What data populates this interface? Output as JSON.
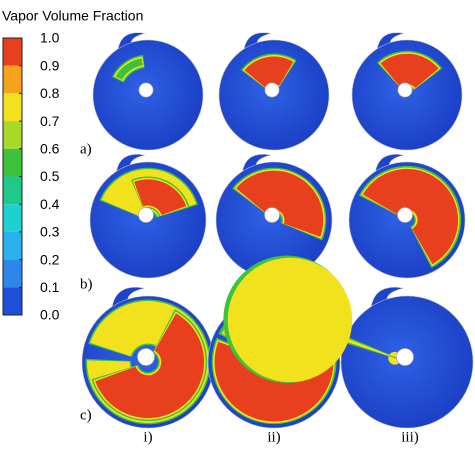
{
  "colorbar": {
    "title": "Vapor Volume Fraction",
    "ticks": [
      {
        "value": 1,
        "label": "1.0"
      },
      {
        "value": 0.9,
        "label": "0.9"
      },
      {
        "value": 0.8,
        "label": "0.8"
      },
      {
        "value": 0.7,
        "label": "0.7"
      },
      {
        "value": 0.6,
        "label": "0.6"
      },
      {
        "value": 0.5,
        "label": "0.5"
      },
      {
        "value": 0.4,
        "label": "0.4"
      },
      {
        "value": 0.3,
        "label": "0.3"
      },
      {
        "value": 0.2,
        "label": "0.2"
      },
      {
        "value": 0.1,
        "label": "0.1"
      },
      {
        "value": 0,
        "label": "0.0"
      }
    ],
    "colors": [
      "#e8401f",
      "#f5a21c",
      "#f2e21e",
      "#a8d828",
      "#3cc23c",
      "#1fc98a",
      "#1fd0d0",
      "#2ab0ec",
      "#2e86ea",
      "#1f4fd8"
    ]
  },
  "rows": [
    "a)",
    "b)",
    "c)"
  ],
  "columns": [
    "i)",
    "ii)",
    "iii)"
  ]
}
